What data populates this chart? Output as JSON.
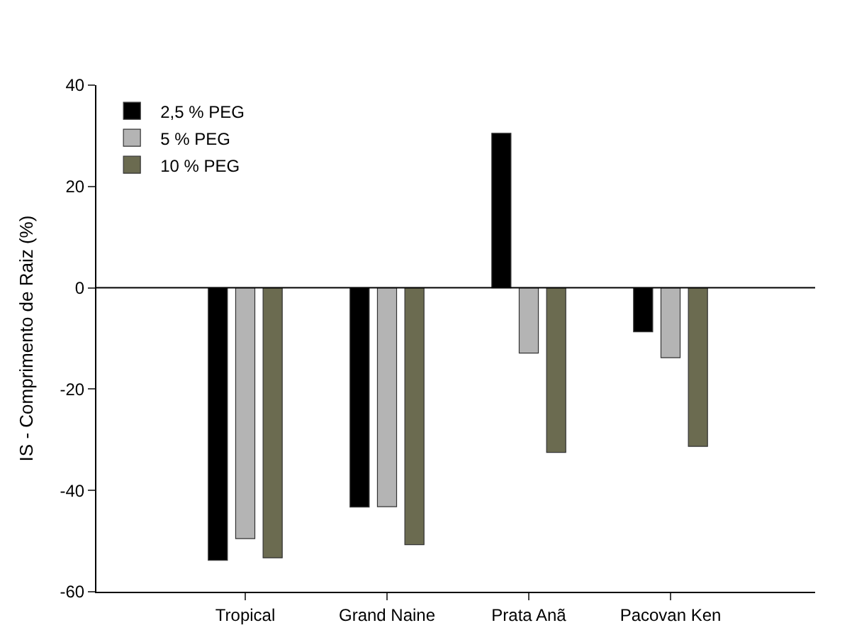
{
  "chart_data": {
    "type": "bar",
    "ylabel": "IS - Comprimento de Raiz (%)",
    "categories": [
      "Tropical",
      "Grand Naine",
      "Prata Anã",
      "Pacovan Ken"
    ],
    "series": [
      {
        "name": "2,5 % PEG",
        "color": "#000000",
        "values": [
          -53.8,
          -43.3,
          30.5,
          -8.7
        ]
      },
      {
        "name": "5 % PEG",
        "color": "#b4b4b4",
        "values": [
          -49.5,
          -43.2,
          -12.9,
          -13.8
        ]
      },
      {
        "name": "10 % PEG",
        "color": "#6b6b50",
        "values": [
          -53.3,
          -50.7,
          -32.5,
          -31.3
        ]
      }
    ],
    "ylim": [
      -60,
      40
    ],
    "yticks": [
      -60,
      -40,
      -20,
      0,
      20,
      40
    ],
    "ref_lines": [
      {
        "axis": "y",
        "value": 0,
        "color": "#000000"
      }
    ],
    "legend": "top left"
  }
}
